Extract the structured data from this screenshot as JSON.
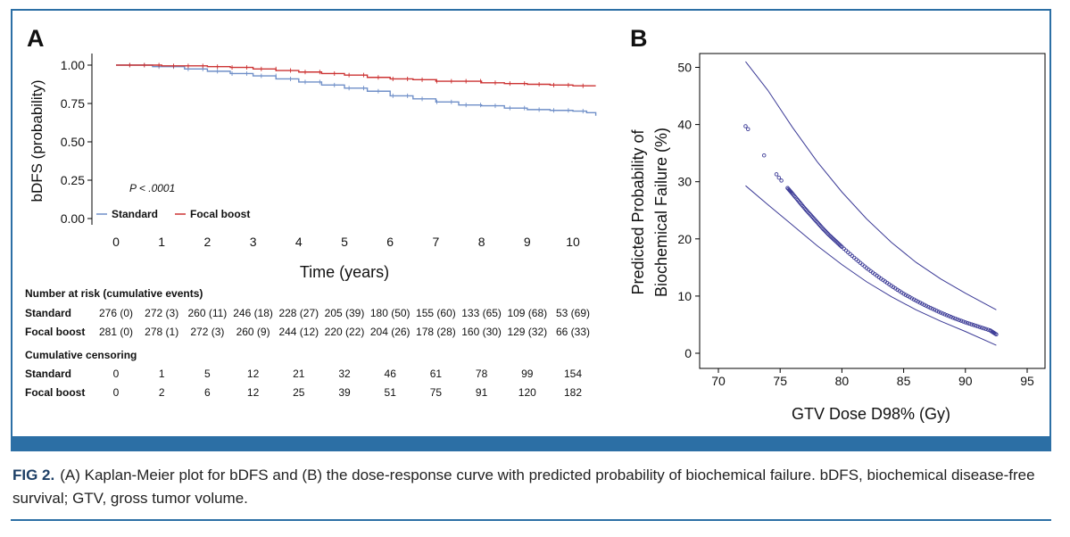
{
  "colors": {
    "standard": "#6f8fc8",
    "focal": "#cc3333",
    "dose": "#3b3a96",
    "frame": "#2c6fa5"
  },
  "caption": {
    "label": "FIG 2.",
    "text": "(A) Kaplan-Meier plot for bDFS and (B) the dose-response curve with predicted probability of biochemical failure. bDFS, biochemical disease-free survival; GTV, gross tumor volume."
  },
  "panel_a": {
    "letter": "A",
    "p_value": "P < .0001",
    "risk_table": {
      "title": "Number at risk (cumulative events)",
      "rows": [
        {
          "label": "Standard",
          "values": [
            "276 (0)",
            "272 (3)",
            "260 (11)",
            "246 (18)",
            "228 (27)",
            "205 (39)",
            "180 (50)",
            "155 (60)",
            "133 (65)",
            "109 (68)",
            "53 (69)"
          ]
        },
        {
          "label": "Focal boost",
          "values": [
            "281 (0)",
            "278 (1)",
            "272 (3)",
            "260 (9)",
            "244 (12)",
            "220 (22)",
            "204 (26)",
            "178 (28)",
            "160 (30)",
            "129 (32)",
            "66 (33)"
          ]
        }
      ]
    },
    "censor_table": {
      "title": "Cumulative censoring",
      "rows": [
        {
          "label": "Standard",
          "values": [
            "0",
            "1",
            "5",
            "12",
            "21",
            "32",
            "46",
            "61",
            "78",
            "99",
            "154"
          ]
        },
        {
          "label": "Focal boost",
          "values": [
            "0",
            "2",
            "6",
            "12",
            "25",
            "39",
            "51",
            "75",
            "91",
            "120",
            "182"
          ]
        }
      ]
    }
  },
  "panel_b": {
    "letter": "B"
  },
  "chart_data": [
    {
      "type": "line",
      "title": "Kaplan-Meier plot for bDFS",
      "xlabel": "Time (years)",
      "ylabel": "bDFS (probability)",
      "xlim": [
        0,
        10.5
      ],
      "ylim": [
        0,
        1.0
      ],
      "x_ticks": [
        0,
        1,
        2,
        3,
        4,
        5,
        6,
        7,
        8,
        9,
        10
      ],
      "y_ticks": [
        0.0,
        0.25,
        0.5,
        0.75,
        1.0
      ],
      "y_tick_labels": [
        "0.00",
        "0.25",
        "0.50",
        "0.75",
        "1.00"
      ],
      "legend": [
        "Standard",
        "Focal boost"
      ],
      "legend_position": "bottom-left",
      "series": [
        {
          "name": "Standard",
          "x": [
            0,
            0.8,
            1.5,
            2,
            2.5,
            3,
            3.5,
            4,
            4.5,
            5,
            5.5,
            6,
            6.5,
            7,
            7.5,
            8,
            8.5,
            9,
            9.5,
            10,
            10.3,
            10.5
          ],
          "y": [
            1.0,
            0.99,
            0.975,
            0.96,
            0.945,
            0.93,
            0.91,
            0.89,
            0.87,
            0.85,
            0.83,
            0.8,
            0.78,
            0.76,
            0.74,
            0.735,
            0.72,
            0.71,
            0.705,
            0.7,
            0.69,
            0.67
          ]
        },
        {
          "name": "Focal boost",
          "x": [
            0,
            1,
            2,
            2.5,
            3,
            3.5,
            4,
            4.5,
            5,
            5.5,
            6,
            6.5,
            7,
            8,
            8.5,
            9,
            9.5,
            10,
            10.5
          ],
          "y": [
            1.0,
            0.995,
            0.99,
            0.985,
            0.975,
            0.965,
            0.955,
            0.945,
            0.935,
            0.92,
            0.91,
            0.905,
            0.895,
            0.885,
            0.88,
            0.875,
            0.87,
            0.865,
            0.865
          ]
        }
      ],
      "annotations": [
        "P < .0001"
      ]
    },
    {
      "type": "scatter",
      "title": "Dose-response curve with predicted probability of biochemical failure",
      "xlabel": "GTV Dose D98% (Gy)",
      "ylabel": "Predicted Probability of Biochemical Failure (%)",
      "ylabel_lines": [
        "Predicted Probability of",
        "Biochemical Failure (%)"
      ],
      "xlim": [
        68,
        96
      ],
      "ylim": [
        -3,
        53
      ],
      "x_ticks": [
        70,
        75,
        80,
        85,
        90,
        95
      ],
      "y_ticks": [
        0,
        10,
        20,
        30,
        40,
        50
      ],
      "series": [
        {
          "name": "Predicted",
          "x": [
            72.2,
            72.4,
            73.7,
            74.7,
            74.9,
            75.1,
            75.6,
            76.0,
            76.5,
            77,
            77.5,
            78,
            78.5,
            79,
            79.5,
            80,
            81,
            82,
            83,
            84,
            85,
            86,
            87,
            88,
            89,
            90,
            91,
            92,
            92.5
          ],
          "y": [
            39.7,
            39.2,
            34.6,
            31.3,
            30.7,
            30.2,
            28.9,
            27.9,
            26.6,
            25.3,
            24.1,
            22.9,
            21.7,
            20.6,
            19.6,
            18.6,
            16.7,
            14.9,
            13.3,
            11.8,
            10.4,
            9.2,
            8.1,
            7.1,
            6.2,
            5.4,
            4.7,
            4.0,
            3.3
          ]
        },
        {
          "name": "Upper CI",
          "x": [
            72.2,
            74,
            76,
            78,
            80,
            82,
            84,
            86,
            88,
            90,
            92.5
          ],
          "y": [
            51.0,
            46.0,
            39.5,
            33.5,
            28.2,
            23.5,
            19.4,
            15.9,
            13.0,
            10.5,
            7.6
          ]
        },
        {
          "name": "Lower CI",
          "x": [
            72.2,
            74,
            76,
            78,
            80,
            82,
            84,
            86,
            88,
            90,
            92.5
          ],
          "y": [
            29.3,
            26.0,
            22.4,
            18.8,
            15.5,
            12.5,
            9.9,
            7.6,
            5.6,
            3.8,
            1.4
          ]
        }
      ]
    }
  ]
}
